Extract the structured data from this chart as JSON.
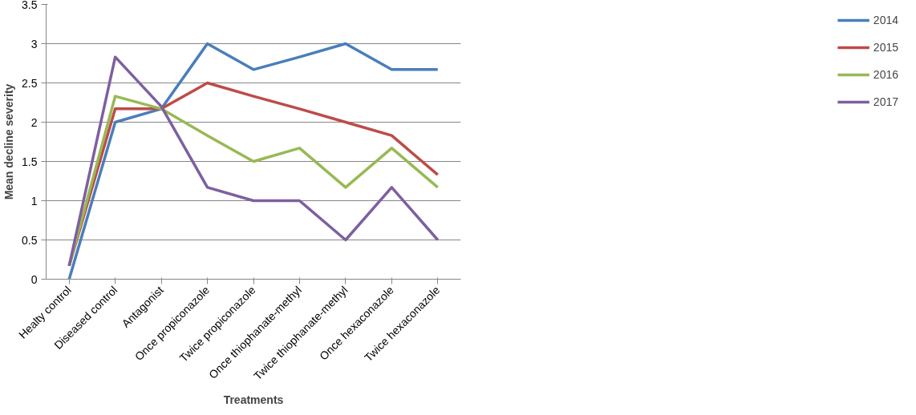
{
  "chart_data": {
    "type": "line",
    "xlabel": "Treatments",
    "ylabel": "Mean decline severity",
    "categories": [
      "Healty control",
      "Diseased control",
      "Antagonist",
      "Once propiconazole",
      "Twice propiconazole",
      "Once thiophanate-methyl",
      "Twice thiophanate-methyl",
      "Once hexaconazole",
      "Twice hexaconazole"
    ],
    "series": [
      {
        "name": "2014",
        "color": "#4a7ebb",
        "values": [
          0,
          2.0,
          2.17,
          3.0,
          2.67,
          2.83,
          3.0,
          2.67,
          2.67
        ]
      },
      {
        "name": "2015",
        "color": "#be4b48",
        "values": [
          0.17,
          2.17,
          2.17,
          2.5,
          2.33,
          2.17,
          2.0,
          1.83,
          1.33
        ]
      },
      {
        "name": "2016",
        "color": "#98b954",
        "values": [
          0.17,
          2.33,
          2.17,
          1.83,
          1.5,
          1.67,
          1.17,
          1.67,
          1.17
        ]
      },
      {
        "name": "2017",
        "color": "#7d60a0",
        "values": [
          0.17,
          2.83,
          2.2,
          1.17,
          1.0,
          1.0,
          0.5,
          1.17,
          0.5
        ]
      }
    ],
    "ylim": [
      0,
      3.5
    ],
    "yticks": [
      0,
      0.5,
      1,
      1.5,
      2,
      2.5,
      3,
      3.5
    ],
    "grid": "y",
    "legend": "right",
    "marker": "none",
    "line_style": "solid"
  }
}
